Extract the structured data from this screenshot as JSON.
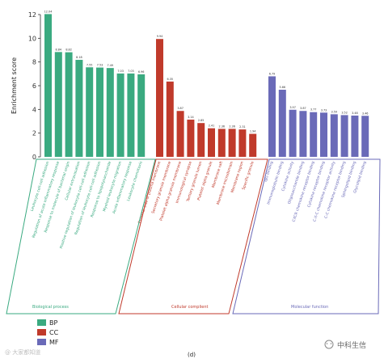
{
  "chart_data": {
    "type": "bar",
    "ylabel": "Enrichment score",
    "ylim": [
      0,
      12
    ],
    "yticks": [
      0,
      2,
      4,
      6,
      8,
      10,
      12
    ],
    "grid": false,
    "legend_position": "bottom-left",
    "groups": [
      {
        "key": "BP",
        "name": "BP",
        "title": "Biological process",
        "color": "#3aaa80",
        "categories": [
          "Leukocyte cell-cell adhesion",
          "Regulation of acute inflammatory response",
          "Response to molecule of bacterial origin",
          "Cellular extravasation",
          "Positive regulation of leukocyte cell-cell adhesion",
          "Regulation of leukocyte cell-cell adhesion",
          "Response to lipopolysaccharide",
          "Myeloid leukocyte migration",
          "Acute inflammatory response",
          "Leukocyte chemotaxis"
        ],
        "values": [
          12.04,
          8.84,
          8.82,
          8.18,
          7.55,
          7.53,
          7.49,
          7.03,
          7.03,
          6.96
        ],
        "labels": [
          "12.04",
          "8.84",
          "8.82",
          "8.18",
          "7.55",
          "7.53",
          "7.49",
          "7.03",
          "7.03",
          "6.96"
        ]
      },
      {
        "key": "CC",
        "name": "CC",
        "title": "Cellular complient",
        "color": "#c03a2b",
        "categories": [
          "External side of plasma membrane",
          "Secretory granule membrane",
          "Platelet alpha granule membrane",
          "Immunological synapse",
          "Tertiary granule lumen",
          "Platelet alpha granule",
          "Membrane raft",
          "Membrane microdomain",
          "Membrane region",
          "Specific granule"
        ],
        "values": [
          9.94,
          6.35,
          3.87,
          3.14,
          2.85,
          2.41,
          2.36,
          2.36,
          2.31,
          1.94
        ],
        "labels": [
          "9.94",
          "6.35",
          "3.87",
          "3.14",
          "2.85",
          "2.41",
          "2.36",
          "2.36",
          "2.31",
          "1.94"
        ]
      },
      {
        "key": "MF",
        "name": "MF",
        "title": "Molecular function",
        "color": "#6a6ab8",
        "categories": [
          "IgG binding",
          "Immunoglobulin binding",
          "Cytokine activity",
          "Oligosaccharide binding",
          "CXCR chemokine receptor binding",
          "Cytokine receptor binding",
          "C-X-C chemokine receptor activity",
          "C-C chemokine receptor binding",
          "Sphingolipid binding",
          "Glycolipid binding"
        ],
        "values": [
          6.79,
          5.66,
          3.97,
          3.87,
          3.77,
          3.73,
          3.59,
          3.52,
          3.48,
          3.46
        ],
        "labels": [
          "6.79",
          "5.66",
          "3.97",
          "3.87",
          "3.77",
          "3.73",
          "3.59",
          "3.52",
          "3.48",
          "3.46"
        ]
      }
    ],
    "panel_label": "(d)"
  },
  "watermark_right": "中科生信",
  "watermark_left": "@ 大家都知道"
}
